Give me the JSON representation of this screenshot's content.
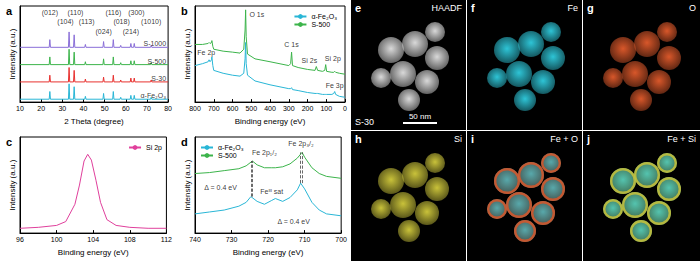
{
  "chart_data": [
    {
      "panel_label": "a",
      "type": "line",
      "x_label": "2 Theta (degree)",
      "y_label": "Intensity (a.u.)",
      "xlim": [
        10,
        80
      ],
      "xticks": [
        10,
        20,
        30,
        40,
        50,
        60,
        70,
        80
      ],
      "ylim": [
        0,
        100
      ],
      "tick_labels": "x",
      "x": [
        10,
        23.8,
        24.1,
        24.4,
        32.9,
        33.2,
        33.5,
        35.3,
        35.6,
        35.9,
        40.6,
        40.9,
        41.2,
        49.2,
        49.5,
        49.8,
        53.8,
        54.1,
        54.4,
        57.3,
        57.6,
        57.9,
        62.1,
        62.4,
        62.7,
        63.7,
        64.0,
        64.3,
        71.7,
        72.0,
        72.3,
        80
      ],
      "series": [
        {
          "name": "α-Fe₂O₃",
          "color": "#29b6d6",
          "values": [
            3,
            3,
            11,
            3,
            3,
            19,
            3,
            3,
            16,
            3,
            3,
            6,
            3,
            3,
            9,
            3,
            3,
            11,
            3,
            3,
            5,
            3,
            3,
            7,
            3,
            3,
            7,
            3,
            3,
            5,
            3,
            3
          ]
        },
        {
          "name": "S-30",
          "color": "#e8312f",
          "values": [
            21,
            21,
            28,
            21,
            21,
            36,
            21,
            21,
            33,
            21,
            21,
            24,
            21,
            21,
            26,
            21,
            21,
            28,
            21,
            21,
            23,
            21,
            21,
            25,
            21,
            21,
            25,
            21,
            21,
            23,
            21,
            21
          ]
        },
        {
          "name": "S-500",
          "color": "#3cb44b",
          "values": [
            39,
            39,
            47,
            39,
            39,
            55,
            39,
            39,
            52,
            39,
            39,
            42,
            39,
            39,
            45,
            39,
            39,
            47,
            39,
            39,
            41,
            39,
            39,
            43,
            39,
            39,
            43,
            39,
            39,
            41,
            39,
            39
          ]
        },
        {
          "name": "S-1000",
          "color": "#8a6fd8",
          "values": [
            57,
            57,
            65,
            57,
            57,
            73,
            57,
            57,
            70,
            57,
            57,
            60,
            57,
            57,
            63,
            57,
            57,
            65,
            57,
            57,
            59,
            57,
            57,
            61,
            57,
            57,
            61,
            57,
            57,
            59,
            57,
            57
          ]
        }
      ],
      "annotations": [
        {
          "text": "(012)",
          "x": 24.1,
          "y": 90
        },
        {
          "text": "(104)",
          "x": 31.5,
          "y": 80
        },
        {
          "text": "(110)",
          "x": 36.2,
          "y": 90
        },
        {
          "text": "(113)",
          "x": 41.5,
          "y": 80
        },
        {
          "text": "(024)",
          "x": 49.5,
          "y": 70
        },
        {
          "text": "(116)",
          "x": 54.1,
          "y": 90
        },
        {
          "text": "(018)",
          "x": 58,
          "y": 80
        },
        {
          "text": "(214)",
          "x": 62.4,
          "y": 70
        },
        {
          "text": "(300)",
          "x": 65,
          "y": 90
        },
        {
          "text": "(1010)",
          "x": 72,
          "y": 80
        }
      ]
    },
    {
      "panel_label": "b",
      "type": "line",
      "x_label": "Binding energy (eV)",
      "y_label": "Intensity (a.u.)",
      "xlim": [
        800,
        0
      ],
      "xticks": [
        800,
        700,
        600,
        500,
        400,
        300,
        200,
        100,
        0
      ],
      "ylim": [
        0,
        100
      ],
      "tick_labels": "x",
      "legend": "upper right",
      "x": [
        800,
        760,
        730,
        725,
        720,
        712,
        710,
        705,
        700,
        650,
        600,
        560,
        540,
        533,
        530,
        527,
        520,
        480,
        400,
        300,
        290,
        285,
        280,
        250,
        200,
        160,
        153,
        146,
        120,
        108,
        103,
        98,
        70,
        60,
        55,
        50,
        30,
        0
      ],
      "series": [
        {
          "name": "α-Fe₂O₃",
          "color": "#29b6d6",
          "values": [
            38,
            40,
            42,
            44,
            42,
            44,
            47,
            38,
            33,
            30,
            28,
            27,
            30,
            45,
            62,
            40,
            28,
            22,
            18,
            14,
            14,
            15,
            13,
            12,
            10,
            9,
            9,
            9,
            8,
            8,
            8,
            8,
            8,
            9,
            11,
            8,
            6,
            5
          ]
        },
        {
          "name": "S-500",
          "color": "#3cb44b",
          "values": [
            60,
            60,
            61,
            62,
            61,
            62,
            64,
            58,
            55,
            53,
            52,
            51,
            55,
            75,
            96,
            68,
            50,
            45,
            42,
            38,
            40,
            52,
            38,
            36,
            34,
            33,
            37,
            33,
            32,
            33,
            39,
            32,
            31,
            31,
            32,
            31,
            30,
            29
          ]
        }
      ],
      "annotations": [
        {
          "text": "Fe 2p",
          "x": 740,
          "y": 48
        },
        {
          "text": "O 1s",
          "x": 470,
          "y": 88
        },
        {
          "text": "C 1s",
          "x": 285,
          "y": 56
        },
        {
          "text": "Si 2s",
          "x": 190,
          "y": 40
        },
        {
          "text": "Si 2p",
          "x": 65,
          "y": 42
        },
        {
          "text": "Fe 3p",
          "x": 55,
          "y": 14
        }
      ]
    },
    {
      "panel_label": "c",
      "type": "line",
      "x_label": "Binding energy (eV)",
      "y_label": "Intensity (a.u.)",
      "xlim": [
        96,
        112
      ],
      "xticks": [
        96,
        100,
        104,
        108,
        112
      ],
      "ylim": [
        0,
        100
      ],
      "tick_labels": "x",
      "legend": "upper right",
      "x": [
        96,
        98,
        100,
        101,
        102,
        102.5,
        103,
        103.4,
        103.8,
        104.3,
        104.8,
        105.5,
        106.5,
        108,
        110,
        112
      ],
      "series": [
        {
          "name": "Si 2p",
          "color": "#e0409c",
          "values": [
            5,
            6,
            8,
            12,
            30,
            50,
            75,
            82,
            76,
            55,
            32,
            14,
            8,
            6,
            5,
            5
          ]
        }
      ]
    },
    {
      "panel_label": "d",
      "type": "line",
      "x_label": "Binding energy (eV)",
      "y_label": "Intensity (a.u.)",
      "xlim": [
        740,
        700
      ],
      "xticks": [
        740,
        730,
        720,
        710,
        700
      ],
      "ylim": [
        0,
        100
      ],
      "tick_labels": "x",
      "legend": "upper left",
      "series": [
        {
          "name": "α-Fe₂O₃",
          "color": "#29b6d6",
          "x": [
            740,
            736,
            732,
            728,
            726,
            724.7,
            723,
            721,
            719,
            718,
            716,
            714,
            712,
            711.1,
            710,
            708,
            706,
            704,
            700
          ],
          "values": [
            20,
            22,
            24,
            28,
            32,
            38,
            33,
            30,
            34,
            36,
            33,
            37,
            45,
            52,
            46,
            32,
            24,
            20,
            18
          ]
        },
        {
          "name": "S-500",
          "color": "#3cb44b",
          "x": [
            740,
            736,
            732,
            728,
            726,
            724.3,
            723,
            721,
            719,
            718,
            716,
            714,
            712,
            710.7,
            710,
            708,
            706,
            704,
            700
          ],
          "values": [
            62,
            63,
            65,
            67,
            70,
            75,
            71,
            68,
            68,
            68,
            69,
            72,
            78,
            84,
            79,
            68,
            62,
            59,
            57
          ]
        }
      ],
      "peak_lines": [
        {
          "x": 724.7,
          "y": [
            38,
            75
          ]
        },
        {
          "x": 724.3,
          "y": [
            38,
            75
          ]
        },
        {
          "x": 711.1,
          "y": [
            52,
            84
          ]
        },
        {
          "x": 710.7,
          "y": [
            52,
            84
          ]
        }
      ],
      "annotations": [
        {
          "text": "Fe 2p₁/₂",
          "x": 721,
          "y": 80
        },
        {
          "text": "Fe 2p₃/₂",
          "x": 711,
          "y": 90
        },
        {
          "text": "Δ = 0.4 eV",
          "x": 733,
          "y": 44
        },
        {
          "text": "Feᴵᴵᴵ sat",
          "x": 719,
          "y": 40
        },
        {
          "text": "Δ = 0.4 eV",
          "x": 713,
          "y": 8
        }
      ]
    }
  ],
  "images": {
    "sample_label": "S-30",
    "scale_bar": "50 nm",
    "panels": [
      {
        "panel_label": "e",
        "title": "HAADF",
        "color": "#d9d9d9"
      },
      {
        "panel_label": "f",
        "title": "Fe",
        "color": "#2ec4d6"
      },
      {
        "panel_label": "g",
        "title": "O",
        "color": "#d8572a"
      },
      {
        "panel_label": "h",
        "title": "Si",
        "color": "#c9c23a"
      },
      {
        "panel_label": "i",
        "title": "Fe + O",
        "colors": [
          "#2ec4d6",
          "#d8572a"
        ]
      },
      {
        "panel_label": "j",
        "title": "Fe + Si",
        "colors": [
          "#2ec4d6",
          "#c9c23a"
        ]
      }
    ]
  }
}
